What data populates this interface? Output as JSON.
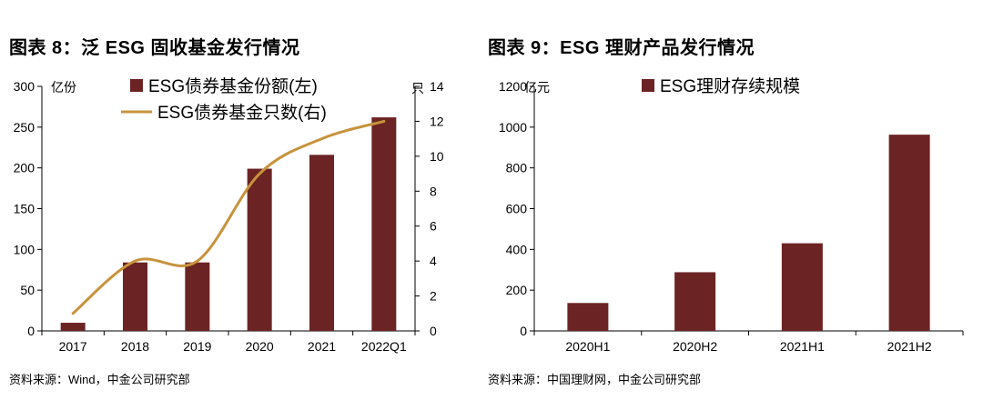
{
  "charts": [
    {
      "title": "图表 8：泛 ESG 固收基金发行情况",
      "source": "资料来源：Wind，中金公司研究部",
      "chart_data": {
        "type": "bar+line",
        "categories": [
          "2017",
          "2018",
          "2019",
          "2020",
          "2021",
          "2022Q1"
        ],
        "series": [
          {
            "name": "ESG债券基金份额(左)",
            "type": "bar",
            "axis": "left",
            "color": "#6b2423",
            "values": [
              10,
              84,
              84,
              199,
              216,
              262
            ]
          },
          {
            "name": "ESG债券基金只数(右)",
            "type": "line",
            "axis": "right",
            "color": "#c8933c",
            "values": [
              1,
              4,
              4,
              9,
              11,
              12
            ]
          }
        ],
        "yleft": {
          "label": "亿份",
          "ylim": [
            0,
            300
          ],
          "ticks": [
            0,
            50,
            100,
            150,
            200,
            250,
            300
          ]
        },
        "yright": {
          "label": "只",
          "ylim": [
            0,
            14
          ],
          "ticks": [
            0,
            2,
            4,
            6,
            8,
            10,
            12,
            14
          ]
        },
        "legend": "top-center",
        "grid": false
      }
    },
    {
      "title": "图表 9：ESG 理财产品发行情况",
      "source": "资料来源：中国理财网，中金公司研究部",
      "chart_data": {
        "type": "bar",
        "categories": [
          "2020H1",
          "2020H2",
          "2021H1",
          "2021H2"
        ],
        "series": [
          {
            "name": "ESG理财存续规模",
            "type": "bar",
            "axis": "left",
            "color": "#6b2423",
            "values": [
              137,
              288,
              430,
              963
            ]
          }
        ],
        "yleft": {
          "label": "亿元",
          "ylim": [
            0,
            1200
          ],
          "ticks": [
            0,
            200,
            400,
            600,
            800,
            1000,
            1200
          ]
        },
        "legend": "top-center",
        "grid": false
      }
    }
  ]
}
